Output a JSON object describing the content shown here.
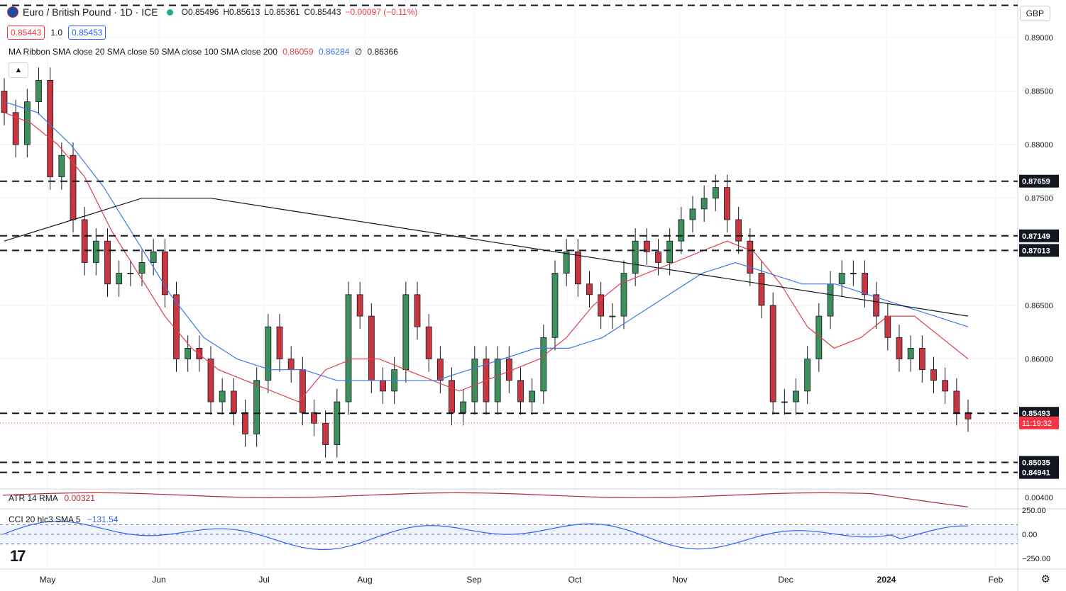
{
  "header": {
    "symbol": "Euro / British Pound · 1D · ICE",
    "open": "O0.85496",
    "high": "H0.85613",
    "low": "L0.85361",
    "close": "C0.85443",
    "change": "−0.00097 (−0.11%)",
    "sell_price": "0.85443",
    "spread": "1.0",
    "buy_price": "0.85453",
    "currency": "GBP"
  },
  "ma_legend": {
    "label": "MA Ribbon SMA close 20 SMA close 50 SMA close 100 SMA close 200",
    "v20": "0.86059",
    "v50": "0.86284",
    "v100": "∅",
    "v200": "0.86366",
    "colors": {
      "sma20": "#e0404a",
      "sma50": "#3b78e7",
      "sma200": "#131722"
    }
  },
  "atr_legend": {
    "label": "ATR 14 RMA",
    "value": "0.00321"
  },
  "cci_legend": {
    "label": "CCI 20 hlc3 SMA 5",
    "value": "−131.54"
  },
  "chart_data": {
    "type": "candlestick",
    "price_axis": {
      "range": [
        0.848,
        0.8935
      ],
      "ticks": [
        "0.89000",
        "0.88500",
        "0.88000",
        "0.87500",
        "0.86500",
        "0.86000"
      ],
      "tick_values": [
        0.89,
        0.885,
        0.88,
        0.875,
        0.865,
        0.86
      ]
    },
    "time_axis": {
      "labels": [
        "May",
        "Jun",
        "Jul",
        "Aug",
        "Sep",
        "Oct",
        "Nov",
        "Dec",
        "2024",
        "Feb"
      ],
      "start": "2023-04-24",
      "end": "2024-02-01"
    },
    "levels": [
      {
        "value": 0.893,
        "label": ""
      },
      {
        "value": 0.87659,
        "label": "0.87659"
      },
      {
        "value": 0.87149,
        "label": "0.87149"
      },
      {
        "value": 0.87013,
        "label": "0.87013"
      },
      {
        "value": 0.85493,
        "label": "0.85493"
      },
      {
        "value": 0.85035,
        "label": "0.85035"
      },
      {
        "value": 0.84941,
        "label": "0.84941"
      }
    ],
    "last_price": {
      "value": 0.85443,
      "countdown": "11:19:32"
    },
    "closes": [
      0.883,
      0.88,
      0.884,
      0.886,
      0.877,
      0.879,
      0.873,
      0.869,
      0.871,
      0.867,
      0.868,
      0.868,
      0.869,
      0.87,
      0.866,
      0.86,
      0.861,
      0.86,
      0.856,
      0.857,
      0.855,
      0.853,
      0.858,
      0.863,
      0.86,
      0.859,
      0.855,
      0.854,
      0.852,
      0.856,
      0.866,
      0.864,
      0.858,
      0.857,
      0.859,
      0.866,
      0.863,
      0.86,
      0.858,
      0.855,
      0.856,
      0.86,
      0.856,
      0.86,
      0.858,
      0.856,
      0.857,
      0.862,
      0.868,
      0.87,
      0.867,
      0.866,
      0.864,
      0.864,
      0.868,
      0.871,
      0.87,
      0.869,
      0.871,
      0.873,
      0.874,
      0.875,
      0.876,
      0.873,
      0.871,
      0.868,
      0.865,
      0.856,
      0.856,
      0.857,
      0.86,
      0.864,
      0.867,
      0.868,
      0.868,
      0.866,
      0.864,
      0.862,
      0.86,
      0.861,
      0.859,
      0.858,
      0.857,
      0.855,
      0.8544
    ],
    "sma20": [
      0.883,
      0.882,
      0.88,
      0.877,
      0.872,
      0.868,
      0.864,
      0.861,
      0.859,
      0.858,
      0.857,
      0.856,
      0.859,
      0.86,
      0.86,
      0.859,
      0.858,
      0.857,
      0.858,
      0.859,
      0.86,
      0.862,
      0.865,
      0.867,
      0.868,
      0.869,
      0.87,
      0.871,
      0.87,
      0.867,
      0.863,
      0.861,
      0.862,
      0.864,
      0.864,
      0.862,
      0.86
    ],
    "sma50": [
      0.884,
      0.883,
      0.88,
      0.876,
      0.871,
      0.866,
      0.862,
      0.86,
      0.859,
      0.859,
      0.858,
      0.858,
      0.858,
      0.858,
      0.859,
      0.86,
      0.861,
      0.861,
      0.862,
      0.864,
      0.866,
      0.868,
      0.869,
      0.868,
      0.867,
      0.867,
      0.866,
      0.865,
      0.864,
      0.863
    ],
    "sma200": [
      0.871,
      0.873,
      0.875,
      0.875,
      0.874,
      0.873,
      0.872,
      0.871,
      0.87,
      0.869,
      0.868,
      0.867,
      0.866,
      0.865,
      0.864
    ],
    "atr": {
      "range": [
        0.0035,
        0.0049
      ],
      "tick": "0.00400",
      "last": 0.00321
    },
    "cci": {
      "ticks": [
        "250.00",
        "0.00",
        "−250.00"
      ],
      "band": [
        -100,
        100
      ],
      "last": -131.54
    }
  },
  "icons": {
    "flag": "eu-gb-flag-icon",
    "collapse": "chevron-up-icon",
    "logo": "tradingview-logo-icon",
    "settings": "gear-icon"
  }
}
